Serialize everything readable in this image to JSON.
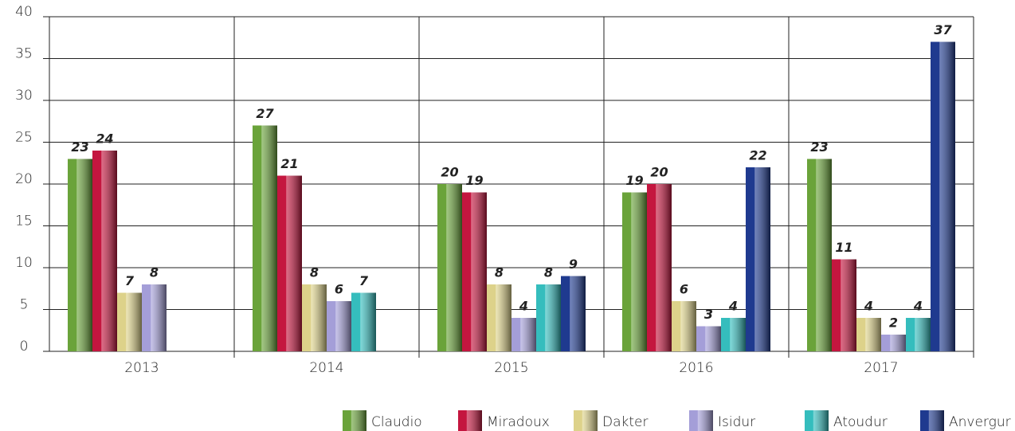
{
  "chart_data": {
    "type": "bar",
    "categories": [
      "2013",
      "2014",
      "2015",
      "2016",
      "2017"
    ],
    "series": [
      {
        "name": "Claudio",
        "color": "#6aa33a",
        "values": [
          23,
          27,
          20,
          19,
          23
        ]
      },
      {
        "name": "Miradoux",
        "color": "#c4163f",
        "values": [
          24,
          21,
          19,
          20,
          11
        ]
      },
      {
        "name": "Dakter",
        "color": "#ddd28a",
        "values": [
          7,
          8,
          8,
          6,
          4
        ]
      },
      {
        "name": "Isidur",
        "color": "#a49ed8",
        "values": [
          8,
          6,
          4,
          3,
          2
        ]
      },
      {
        "name": "Atoudur",
        "color": "#35bdbd",
        "values": [
          null,
          7,
          8,
          4,
          4
        ]
      },
      {
        "name": "Anvergur",
        "color": "#1f3a8f",
        "values": [
          null,
          null,
          9,
          22,
          37
        ]
      }
    ],
    "ylim": [
      0,
      40
    ],
    "yticks": [
      0,
      5,
      10,
      15,
      20,
      25,
      30,
      35,
      40
    ],
    "grid": true
  }
}
